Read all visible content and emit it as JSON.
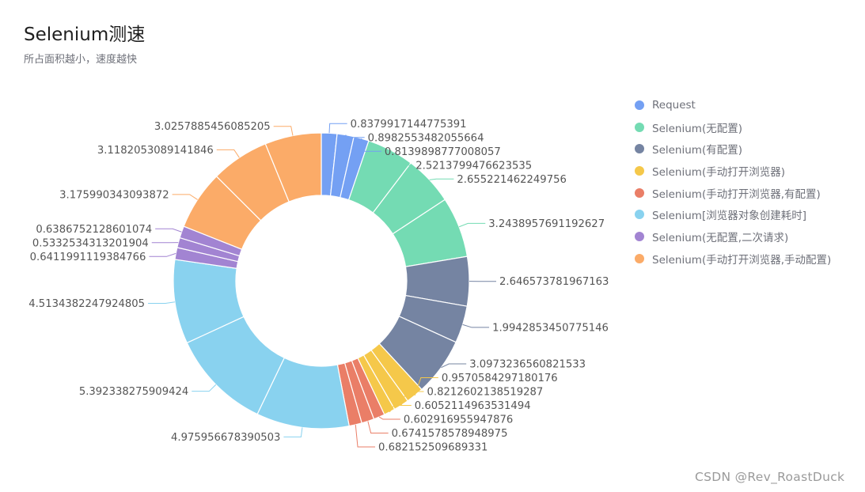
{
  "chart_data": {
    "type": "pie",
    "variant": "donut",
    "title": "Selenium测速",
    "subtitle": "所占面积越小，速度越快",
    "legend_position": "right",
    "series": [
      {
        "name": "Request",
        "color": "#74a0f3",
        "values": [
          0.8379917144775391,
          0.8982553482055664,
          0.8139898777008057
        ]
      },
      {
        "name": "Selenium(无配置)",
        "color": "#74dbb3",
        "values": [
          2.5213799476623535,
          2.655221462249756,
          3.2438957691192627
        ]
      },
      {
        "name": "Selenium(有配置)",
        "color": "#7584a2",
        "values": [
          2.646573781967163,
          1.9942853450775146,
          3.0973236560821533
        ]
      },
      {
        "name": "Selenium(手动打开浏览器)",
        "color": "#f5c84a",
        "values": [
          0.9570584297180176,
          0.8212602138519287,
          0.6052114963531494
        ]
      },
      {
        "name": "Selenium(手动打开浏览器,有配置)",
        "color": "#ea7e67",
        "values": [
          0.602916955947876,
          0.6741578578948975,
          0.682152509689331
        ]
      },
      {
        "name": "Selenium[浏览器对象创建耗时]",
        "color": "#89d2ef",
        "values": [
          4.975956678390503,
          5.392338275909424,
          4.5134382247924805
        ]
      },
      {
        "name": "Selenium(无配置,二次请求)",
        "color": "#a284d2",
        "values": [
          0.6411991119384766,
          0.5332534313201904,
          0.6386752128601074
        ]
      },
      {
        "name": "Selenium(手动打开浏览器,手动配置)",
        "color": "#fbab68",
        "values": [
          3.175990343093872,
          3.1182053089141846,
          3.0257885456085205
        ]
      }
    ],
    "slice_labels": [
      "0.8379917144775391",
      "0.8982553482055664",
      "0.8139898777008057",
      "2.5213799476623535",
      "2.655221462249756",
      "3.2438957691192627",
      "2.646573781967163",
      "1.9942853450775146",
      "3.0973236560821533",
      "0.9570584297180176",
      "0.8212602138519287",
      "0.6052114963531494",
      "0.602916955947876",
      "0.6741578578948975",
      "0.682152509689331",
      "4.975956678390503",
      "5.392338275909424",
      "4.5134382247924805",
      "0.6411991119384766",
      "0.5332534313201904",
      "0.6386752128601074",
      "3.175990343093872",
      "3.1182053089141846",
      "3.0257885456085205"
    ]
  },
  "legend": {
    "items": [
      "Request",
      "Selenium(无配置)",
      "Selenium(有配置)",
      "Selenium(手动打开浏览器)",
      "Selenium(手动打开浏览器,有配置)",
      "Selenium[浏览器对象创建耗时]",
      "Selenium(无配置,二次请求)",
      "Selenium(手动打开浏览器,手动配置)"
    ]
  },
  "watermark": "CSDN @Rev_RoastDuck"
}
